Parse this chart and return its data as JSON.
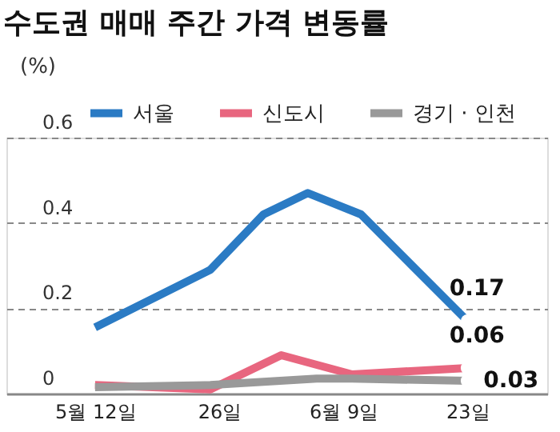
{
  "chart_data": {
    "type": "line",
    "title": "수도권 매매 주간 가격 변동률",
    "ylabel": "(%)",
    "xlim": [
      "--05-02",
      "--07-02"
    ],
    "xticks": [
      {
        "value": "--05-12",
        "label": "5월 12일"
      },
      {
        "value": "--05-26",
        "label": "26일"
      },
      {
        "value": "--06-09",
        "label": "6월 9일"
      },
      {
        "value": "--06-23",
        "label": "23일"
      }
    ],
    "ylim": [
      0,
      0.6
    ],
    "yticks": [
      0,
      0.2,
      0.4,
      0.6
    ],
    "grid": "y",
    "legend": "top",
    "line_style": "solid",
    "series": [
      {
        "name": "서울",
        "color": "#2b7bc4",
        "x": [
          "--05-12",
          "--05-25",
          "--05-31",
          "--06-05",
          "--06-11",
          "--06-23"
        ],
        "values": [
          0.155,
          0.29,
          0.42,
          0.47,
          0.42,
          0.17
        ],
        "value_labels": [
          null,
          null,
          null,
          null,
          null,
          "0.17"
        ]
      },
      {
        "name": "신도시",
        "color": "#e8667f",
        "x": [
          "--05-12",
          "--05-25",
          "--06-02",
          "--06-10",
          "--06-23"
        ],
        "values": [
          0.02,
          0.01,
          0.09,
          0.045,
          0.06
        ],
        "value_labels": [
          null,
          null,
          null,
          null,
          "0.06"
        ]
      },
      {
        "name": "경기 · 인천",
        "color": "#999999",
        "x": [
          "--05-12",
          "--05-25",
          "--06-06",
          "--06-10",
          "--06-23"
        ],
        "values": [
          0.015,
          0.02,
          0.035,
          0.035,
          0.03
        ],
        "value_labels": [
          null,
          null,
          null,
          null,
          "0.03"
        ]
      }
    ]
  }
}
